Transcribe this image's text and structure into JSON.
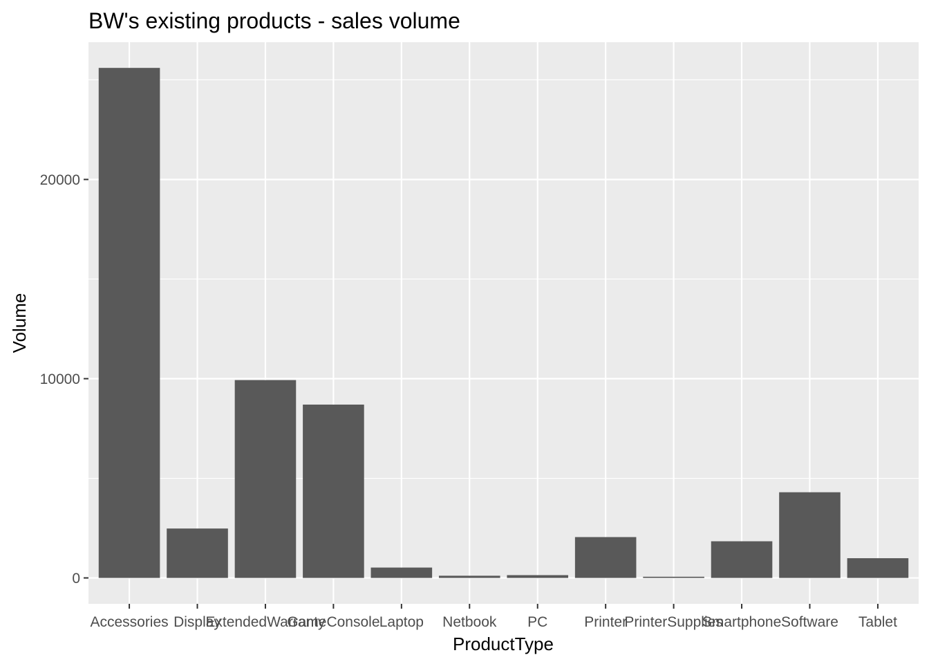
{
  "chart_data": {
    "type": "bar",
    "title": "BW's existing products - sales volume",
    "xlabel": "ProductType",
    "ylabel": "Volume",
    "categories": [
      "Accessories",
      "Display",
      "ExtendedWarranty",
      "GameConsole",
      "Laptop",
      "Netbook",
      "PC",
      "Printer",
      "PrinterSupplies",
      "Smartphone",
      "Software",
      "Tablet"
    ],
    "values": [
      25600,
      2480,
      9930,
      8700,
      520,
      110,
      140,
      2050,
      60,
      1840,
      4300,
      990
    ],
    "y_ticks": [
      0,
      10000,
      20000
    ],
    "y_tick_labels": [
      "0",
      "10000",
      "20000"
    ],
    "ylim": [
      -1300,
      26890
    ],
    "grid": true,
    "colors": {
      "panel": "#ebebeb",
      "grid": "#ffffff",
      "bar": "#595959",
      "tick": "#333333"
    }
  }
}
